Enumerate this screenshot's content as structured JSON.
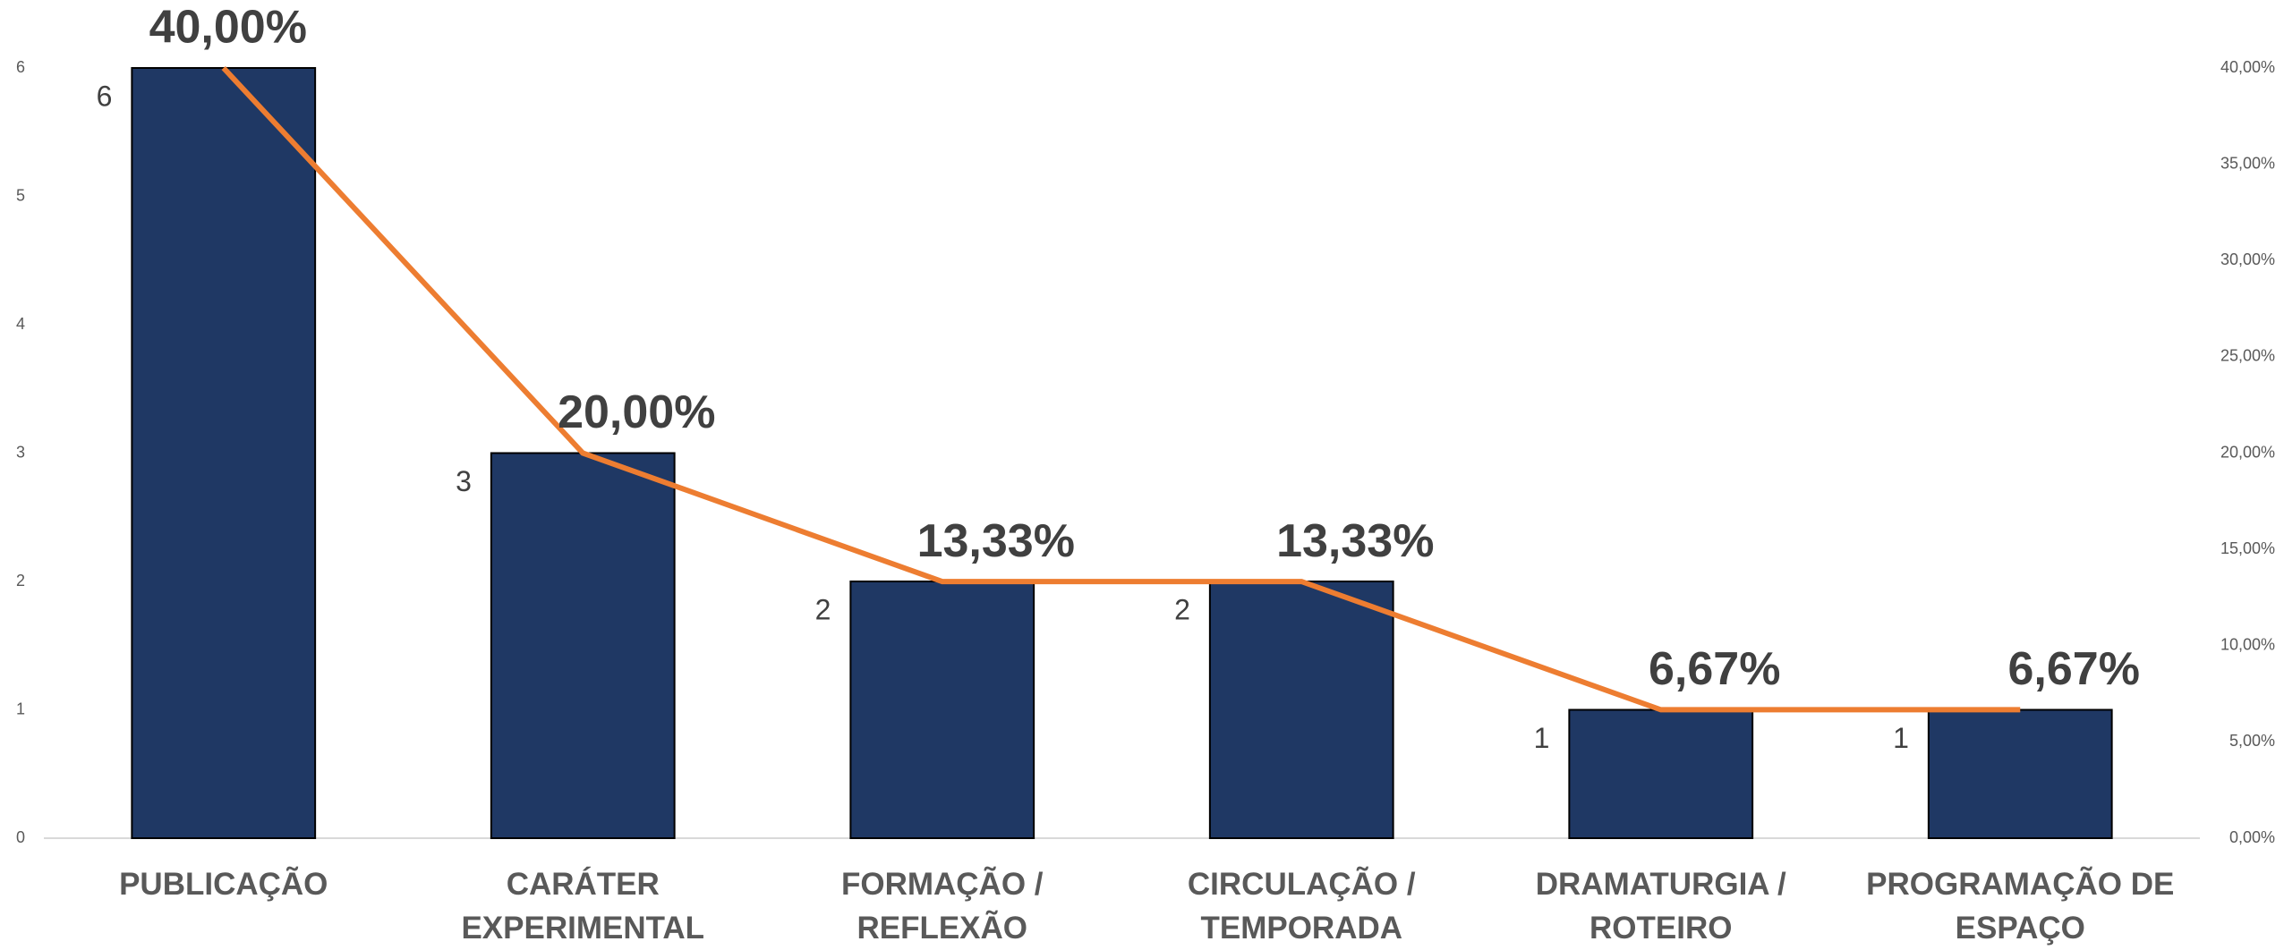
{
  "chart_data": {
    "type": "combo",
    "categories": [
      "PUBLICAÇÃO",
      "CARÁTER EXPERIMENTAL",
      "FORMAÇÃO / REFLEXÃO",
      "CIRCULAÇÃO / TEMPORADA",
      "DRAMATURGIA / ROTEIRO",
      "PROGRAMAÇÃO DE ESPAÇO"
    ],
    "series": [
      {
        "type": "bar",
        "color": "#1f3864",
        "values": [
          6,
          3,
          2,
          2,
          1,
          1
        ]
      },
      {
        "type": "line",
        "axis": "y2",
        "color": "#ed7d31",
        "values": [
          40,
          20,
          13.33,
          13.33,
          6.67,
          6.67
        ],
        "value_labels": [
          "40,00%",
          "20,00%",
          "13,33%",
          "13,33%",
          "6,67%",
          "6,67%"
        ]
      }
    ],
    "ylim": [
      0,
      6
    ],
    "yticks": [
      0,
      1,
      2,
      3,
      4,
      5,
      6
    ],
    "y2lim": [
      0,
      40
    ],
    "y2ticks": [
      {
        "value": 0,
        "label": "0,00%"
      },
      {
        "value": 5,
        "label": "5,00%"
      },
      {
        "value": 10,
        "label": "10,00%"
      },
      {
        "value": 15,
        "label": "15,00%"
      },
      {
        "value": 20,
        "label": "20,00%"
      },
      {
        "value": 25,
        "label": "25,00%"
      },
      {
        "value": 30,
        "label": "30,00%"
      },
      {
        "value": 35,
        "label": "35,00%"
      },
      {
        "value": 40,
        "label": "40,00%"
      }
    ],
    "grid": false
  }
}
